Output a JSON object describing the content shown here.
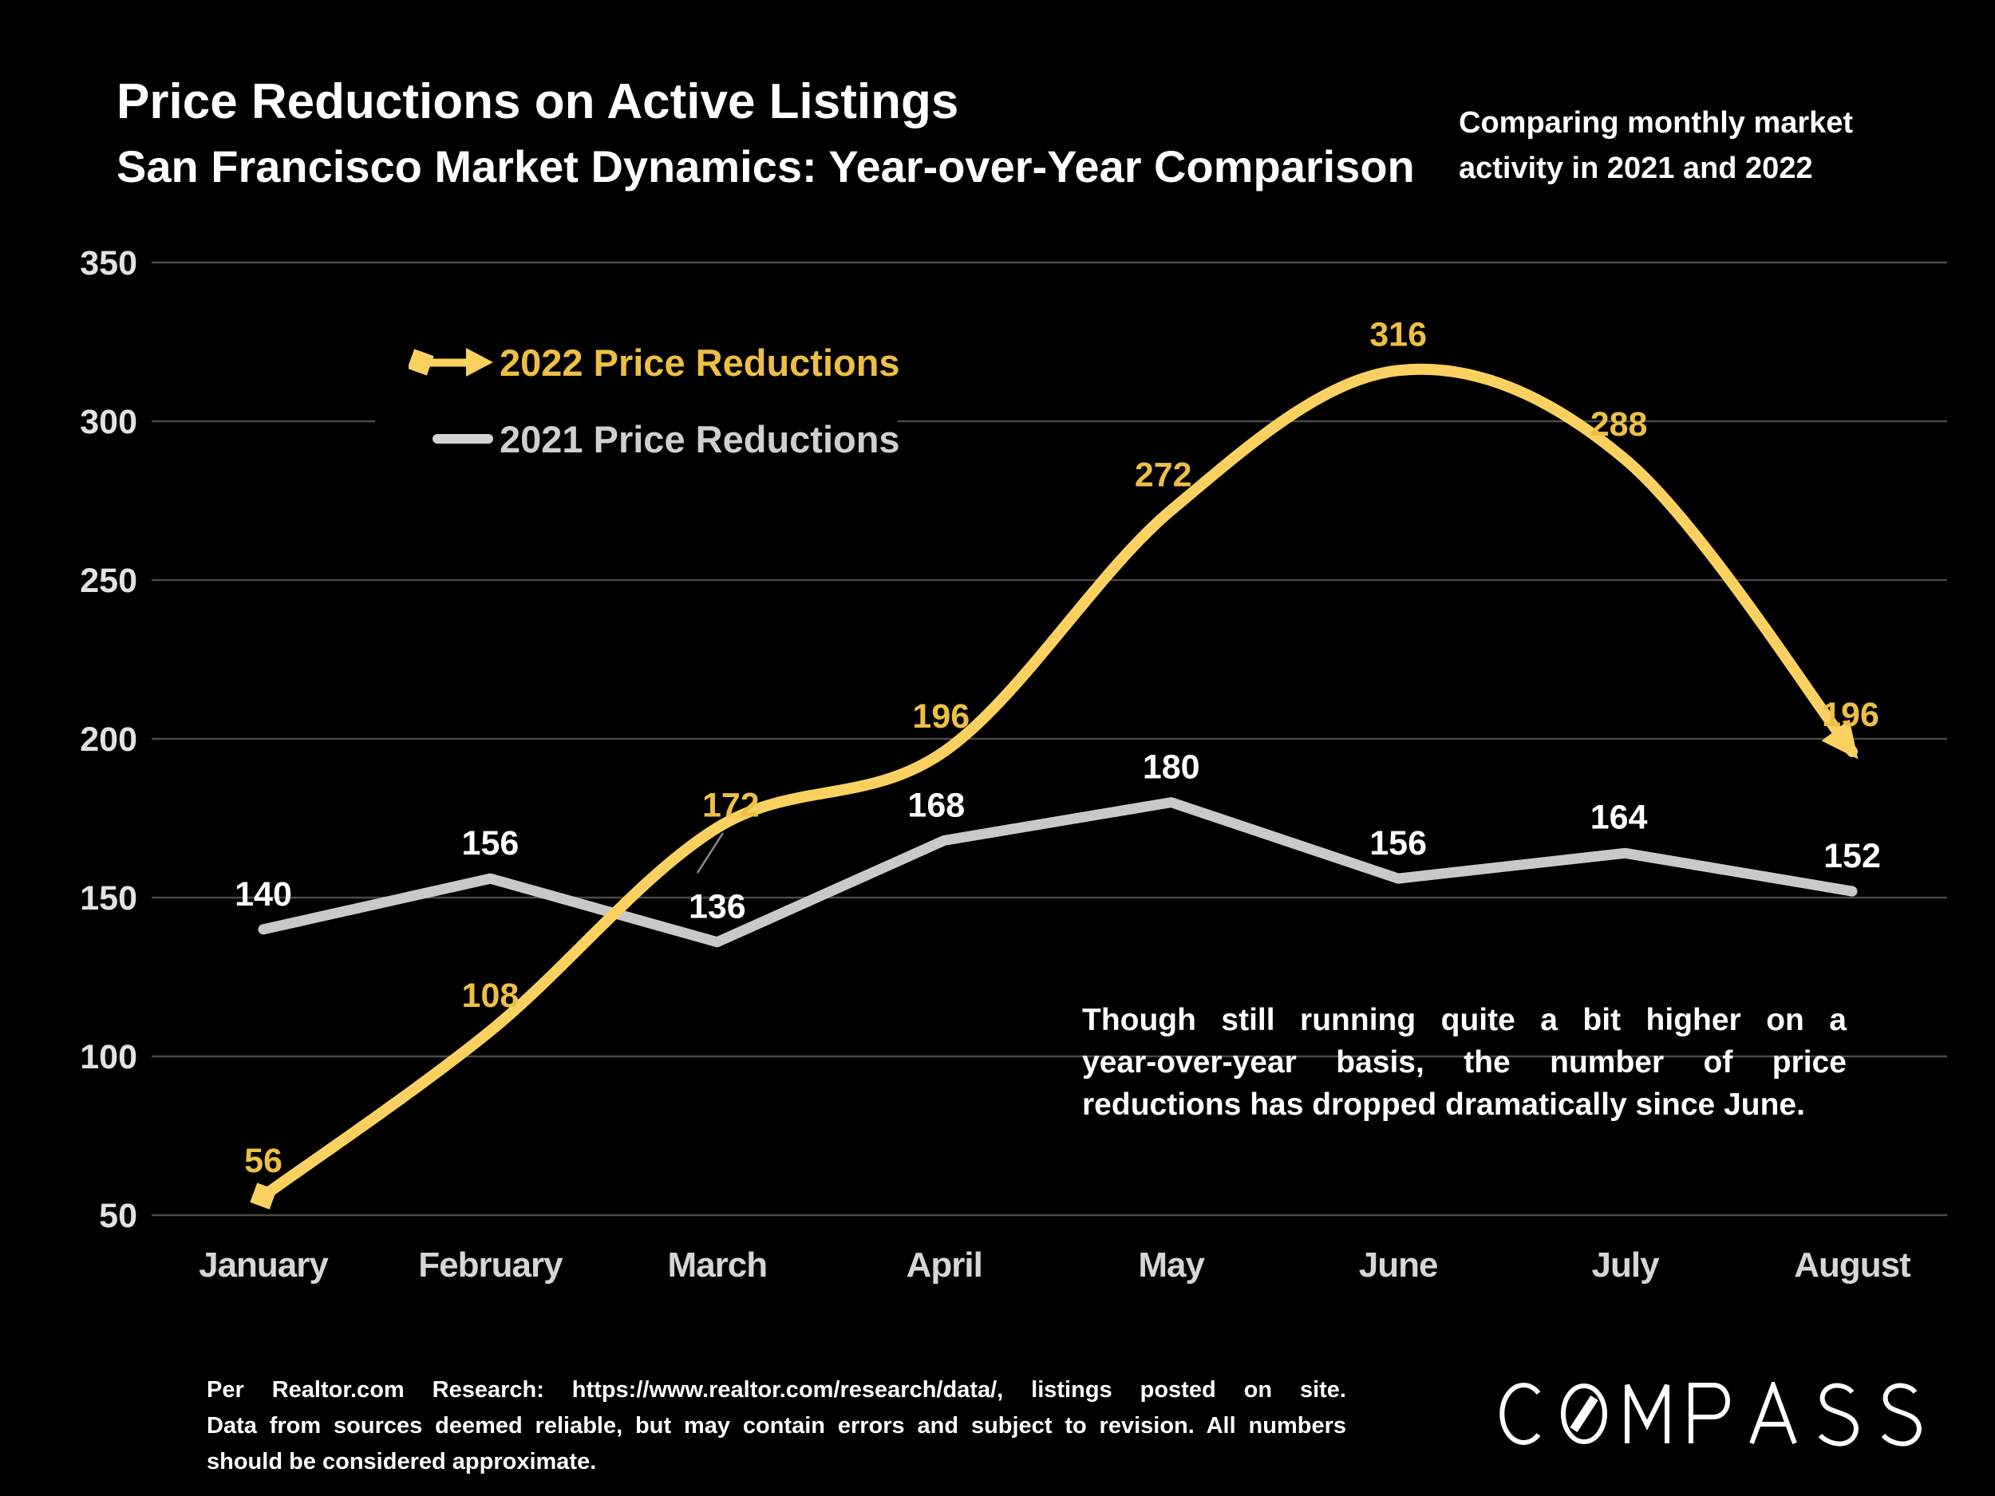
{
  "header": {
    "title": "Price Reductions on Active Listings",
    "subtitle": "San Francisco Market Dynamics: Year-over-Year Comparison",
    "note_lines": [
      "Comparing monthly market",
      "activity in 2021 and 2022"
    ]
  },
  "legend": {
    "items": [
      {
        "label": "2022 Price Reductions",
        "color": "#EDBF45",
        "marker": "diamond-arrow-line"
      },
      {
        "label": "2021 Price Reductions",
        "color": "#CFCFCF",
        "marker": "plain-line"
      }
    ]
  },
  "chart_data": {
    "type": "line",
    "categories": [
      "January",
      "February",
      "March",
      "April",
      "May",
      "June",
      "July",
      "August"
    ],
    "series": [
      {
        "name": "2022 Price Reductions",
        "values": [
          56,
          108,
          172,
          196,
          272,
          316,
          288,
          196
        ],
        "style": "smooth",
        "start_marker": "diamond",
        "end_marker": "arrowhead"
      },
      {
        "name": "2021 Price Reductions",
        "values": [
          140,
          156,
          136,
          168,
          180,
          156,
          164,
          152
        ],
        "style": "straight"
      }
    ],
    "ylim": [
      50,
      350
    ],
    "yticks": [
      350,
      300,
      250,
      200,
      150,
      100,
      50
    ],
    "grid": "horizontal",
    "legend_position": "upper-left-inside",
    "title": "Price Reductions on Active Listings",
    "xlabel": "",
    "ylabel": ""
  },
  "annotation": {
    "lines": [
      "Though still running quite a bit higher on a",
      "year-over-year basis, the number of price",
      "reductions has dropped dramatically since June."
    ]
  },
  "footer": {
    "lines": [
      "Per Realtor.com Research:  https://www.realtor.com/research/data/, listings posted on site.",
      "Data from sources deemed reliable, but may contain errors and subject to revision. All numbers",
      "should be considered approximate."
    ]
  },
  "logo": {
    "text": "COMPASS"
  },
  "colors": {
    "background": "#000000",
    "line_2022": "#FAD160",
    "label_2022": "#EDBF45",
    "line_2021": "#C9C9C9",
    "label_2021": "#FFFFFF",
    "gridline": "#4A4A4A",
    "tick_label": "#E2E2E2",
    "month_label": "#D6D6D6",
    "leader_line": "#8A8A8A"
  }
}
